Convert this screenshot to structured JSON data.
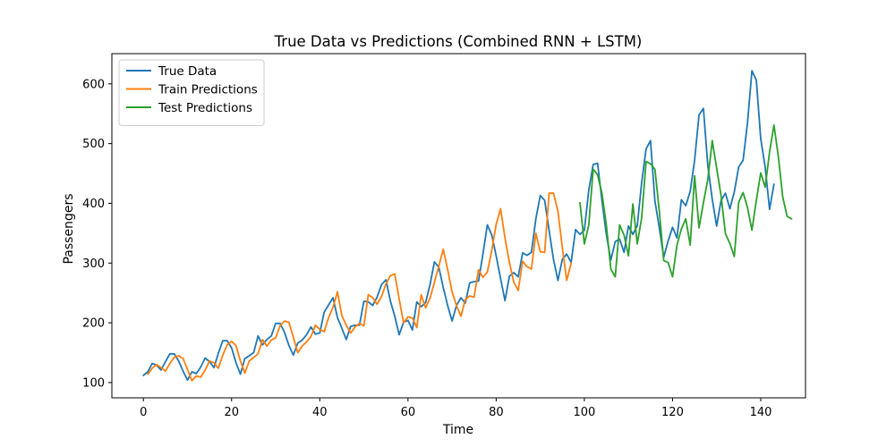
{
  "chart_data": {
    "type": "line",
    "title": "True Data vs Predictions (Combined RNN + LSTM)",
    "xlabel": "Time",
    "ylabel": "Passengers",
    "xlim": [
      -7.15,
      150.15
    ],
    "ylim": [
      74.4,
      650.6
    ],
    "xticks": [
      0,
      20,
      40,
      60,
      80,
      100,
      120,
      140
    ],
    "yticks": [
      100,
      200,
      300,
      400,
      500,
      600
    ],
    "grid": false,
    "legend_position": "top-left",
    "series": [
      {
        "name": "True Data",
        "color": "#1f77b4",
        "x_start": 0,
        "values": [
          112,
          118,
          132,
          129,
          121,
          135,
          148,
          148,
          136,
          119,
          104,
          118,
          115,
          126,
          141,
          135,
          125,
          149,
          170,
          170,
          158,
          133,
          114,
          140,
          145,
          150,
          178,
          163,
          172,
          178,
          199,
          199,
          184,
          162,
          146,
          166,
          171,
          180,
          193,
          181,
          183,
          218,
          230,
          242,
          209,
          191,
          172,
          194,
          196,
          196,
          236,
          235,
          229,
          243,
          264,
          272,
          237,
          211,
          180,
          201,
          204,
          188,
          235,
          227,
          234,
          264,
          302,
          293,
          259,
          229,
          203,
          229,
          242,
          233,
          267,
          269,
          270,
          315,
          364,
          347,
          312,
          274,
          237,
          278,
          284,
          277,
          317,
          313,
          318,
          374,
          413,
          405,
          355,
          306,
          271,
          306,
          315,
          301,
          356,
          348,
          355,
          422,
          465,
          467,
          404,
          347,
          305,
          336,
          340,
          318,
          362,
          348,
          363,
          435,
          491,
          505,
          404,
          359,
          310,
          337,
          360,
          342,
          406,
          396,
          420,
          472,
          548,
          559,
          463,
          407,
          362,
          405,
          417,
          391,
          419,
          461,
          472,
          535,
          622,
          606,
          508,
          461,
          390,
          432
        ]
      },
      {
        "name": "Train Predictions",
        "color": "#ff7f0e",
        "x_start": 1,
        "values": [
          114,
          124,
          130,
          125,
          119,
          132,
          142,
          145,
          140,
          122,
          103,
          111,
          109,
          121,
          136,
          133,
          124,
          146,
          163,
          169,
          162,
          136,
          116,
          136,
          142,
          148,
          172,
          161,
          171,
          175,
          195,
          203,
          201,
          176,
          150,
          161,
          168,
          177,
          196,
          189,
          185,
          209,
          226,
          252,
          212,
          196,
          183,
          193,
          199,
          195,
          247,
          242,
          231,
          244,
          265,
          279,
          282,
          240,
          200,
          210,
          208,
          192,
          247,
          225,
          241,
          268,
          295,
          323,
          289,
          252,
          229,
          211,
          239,
          245,
          243,
          289,
          276,
          285,
          321,
          365,
          391,
          342,
          301,
          268,
          254,
          303,
          294,
          290,
          350,
          319,
          318,
          417,
          417,
          387,
          326,
          271,
          300
        ]
      },
      {
        "name": "Test Predictions",
        "color": "#2ca02c",
        "x_start": 99,
        "values": [
          401,
          332,
          364,
          457,
          448,
          416,
          363,
          290,
          277,
          364,
          347,
          312,
          399,
          332,
          376,
          470,
          466,
          457,
          387,
          304,
          301,
          277,
          330,
          357,
          374,
          330,
          446,
          359,
          401,
          440,
          505,
          459,
          413,
          349,
          333,
          311,
          402,
          418,
          393,
          355,
          405,
          451,
          427,
          486,
          531,
          478,
          410,
          378,
          374
        ]
      }
    ]
  }
}
